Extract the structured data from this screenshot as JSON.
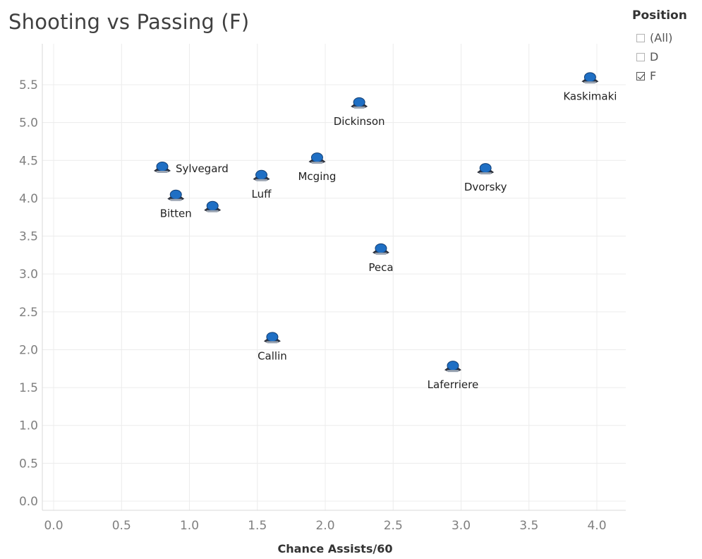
{
  "chart_data": {
    "type": "scatter",
    "title": "Shooting vs Passing (F)",
    "xlabel": "Chance Assists/60",
    "ylabel": "",
    "xlim": [
      -0.1,
      4.2
    ],
    "ylim": [
      -0.1,
      5.9
    ],
    "x_ticks": [
      "0.0",
      "0.5",
      "1.0",
      "1.5",
      "2.0",
      "2.5",
      "3.0",
      "3.5",
      "4.0"
    ],
    "y_ticks": [
      "0.0",
      "0.5",
      "1.0",
      "1.5",
      "2.0",
      "2.5",
      "3.0",
      "3.5",
      "4.0",
      "4.5",
      "5.0",
      "5.5"
    ],
    "grid": true,
    "points": [
      {
        "name": "Kaskimaki",
        "x": 3.95,
        "y": 5.58,
        "label_pos": "below"
      },
      {
        "name": "Dickinson",
        "x": 2.25,
        "y": 5.25,
        "label_pos": "below"
      },
      {
        "name": "Sylvegard",
        "x": 0.8,
        "y": 4.4,
        "label_pos": "right"
      },
      {
        "name": "Mcging",
        "x": 1.94,
        "y": 4.52,
        "label_pos": "below"
      },
      {
        "name": "Luff",
        "x": 1.53,
        "y": 4.29,
        "label_pos": "below"
      },
      {
        "name": "Dvorsky",
        "x": 3.18,
        "y": 4.38,
        "label_pos": "below"
      },
      {
        "name": "Bitten",
        "x": 0.9,
        "y": 4.03,
        "label_pos": "below"
      },
      {
        "name": "",
        "x": 1.17,
        "y": 3.88,
        "label_pos": "none"
      },
      {
        "name": "Peca",
        "x": 2.41,
        "y": 3.32,
        "label_pos": "below"
      },
      {
        "name": "Callin",
        "x": 1.61,
        "y": 2.15,
        "label_pos": "below"
      },
      {
        "name": "Laferriere",
        "x": 2.94,
        "y": 1.77,
        "label_pos": "below"
      }
    ],
    "legend": {
      "title": "Position",
      "placement": "top-right",
      "items": [
        {
          "label": "(All)",
          "checked": false
        },
        {
          "label": "D",
          "checked": false
        },
        {
          "label": "F",
          "checked": true
        }
      ]
    },
    "colors": {
      "grid": "#ececec",
      "tick_text": "#7f7f7f",
      "label_text": "#222222",
      "marker_blue": "#1f6fc4",
      "marker_dark": "#2b2f3a"
    }
  }
}
